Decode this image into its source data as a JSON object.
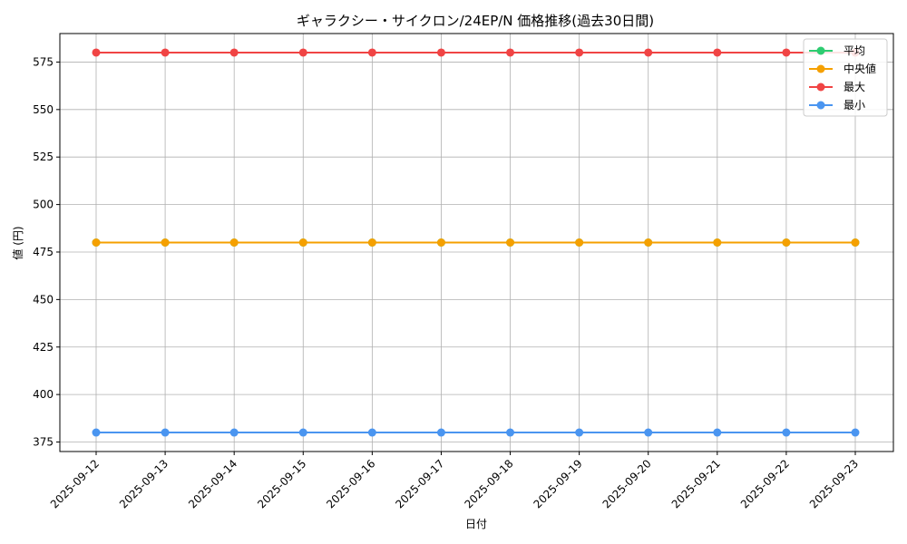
{
  "chart_data": {
    "type": "line",
    "title": "ギャラクシー・サイクロン/24EP/N 価格推移(過去30日間)",
    "xlabel": "日付",
    "ylabel": "値 (円)",
    "categories": [
      "2025-09-12",
      "2025-09-13",
      "2025-09-14",
      "2025-09-15",
      "2025-09-16",
      "2025-09-17",
      "2025-09-18",
      "2025-09-19",
      "2025-09-20",
      "2025-09-21",
      "2025-09-22",
      "2025-09-23"
    ],
    "ylim": [
      370,
      590
    ],
    "yticks": [
      375,
      400,
      425,
      450,
      475,
      500,
      525,
      550,
      575
    ],
    "grid": true,
    "legend_position": "top-right",
    "series": [
      {
        "name": "平均",
        "color": "#2ecc71",
        "values": [
          480,
          480,
          480,
          480,
          480,
          480,
          480,
          480,
          480,
          480,
          480,
          480
        ]
      },
      {
        "name": "中央値",
        "color": "#f5a000",
        "values": [
          480,
          480,
          480,
          480,
          480,
          480,
          480,
          480,
          480,
          480,
          480,
          480
        ]
      },
      {
        "name": "最大",
        "color": "#f04444",
        "values": [
          580,
          580,
          580,
          580,
          580,
          580,
          580,
          580,
          580,
          580,
          580,
          580
        ]
      },
      {
        "name": "最小",
        "color": "#4a95f0",
        "values": [
          380,
          380,
          380,
          380,
          380,
          380,
          380,
          380,
          380,
          380,
          380,
          380
        ]
      }
    ]
  }
}
